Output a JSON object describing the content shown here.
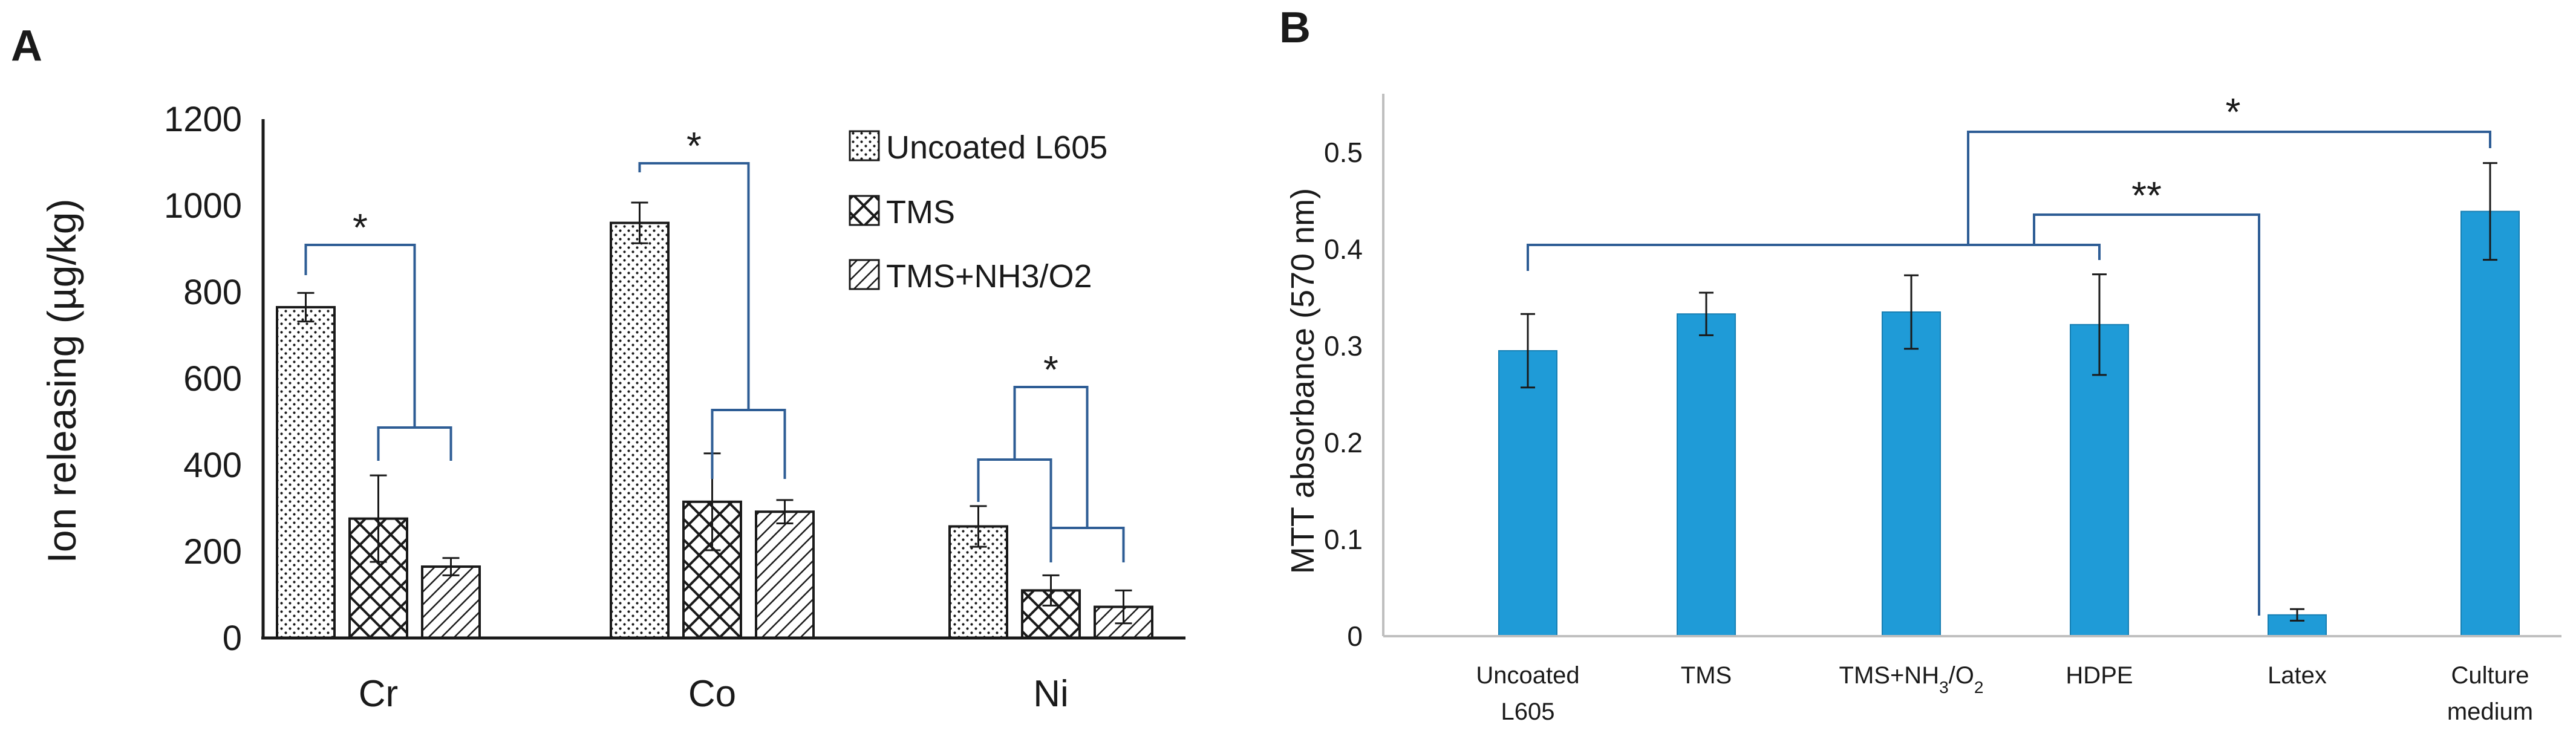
{
  "panels": {
    "a": "A",
    "b": "B"
  },
  "chart_data": [
    {
      "type": "bar",
      "title": "",
      "xlabel": "",
      "ylabel": "Ion releasing (µg/kg)",
      "ylim": [
        0,
        1200
      ],
      "yticks": [
        0,
        200,
        400,
        600,
        800,
        1000,
        1200
      ],
      "categories": [
        "Cr",
        "Co",
        "Ni"
      ],
      "series": [
        {
          "name": "Uncoated L605",
          "values": [
            765,
            960,
            258
          ],
          "errors": [
            33,
            47,
            47
          ],
          "pattern": "dots"
        },
        {
          "name": "TMS",
          "values": [
            276,
            315,
            110
          ],
          "errors": [
            100,
            112,
            35
          ],
          "pattern": "crosshatch"
        },
        {
          "name": "TMS+NH3/O2",
          "values": [
            165,
            292,
            72
          ],
          "errors": [
            20,
            27,
            38
          ],
          "pattern": "diagonal"
        }
      ],
      "legend_position": "top-right",
      "significance": [
        {
          "category": "Cr",
          "label": "*"
        },
        {
          "category": "Co",
          "label": "*"
        },
        {
          "category": "Ni",
          "label": "*"
        }
      ]
    },
    {
      "type": "bar",
      "title": "",
      "xlabel": "",
      "ylabel": "MTT absorbance (570 nm)",
      "ylim": [
        0,
        0.55
      ],
      "yticks": [
        0,
        0.1,
        0.2,
        0.3,
        0.4,
        0.5
      ],
      "ytick_labels": [
        "0",
        "0.1",
        "0.2",
        "0.3",
        "0.4",
        "0.5"
      ],
      "categories": [
        {
          "line1": "Uncoated",
          "line2": "L605"
        },
        {
          "line1": "TMS",
          "line2": ""
        },
        {
          "line1": "TMS+NH",
          "sub1": "3",
          "mid": "/O",
          "sub2": "2",
          "line2": ""
        },
        {
          "line1": "HDPE",
          "line2": ""
        },
        {
          "line1": "Latex",
          "line2": ""
        },
        {
          "line1": "Culture",
          "line2": "medium"
        }
      ],
      "values": [
        0.295,
        0.333,
        0.335,
        0.322,
        0.022,
        0.439
      ],
      "errors": [
        0.038,
        0.022,
        0.038,
        0.052,
        0.006,
        0.05
      ],
      "color": "#1F9BD7",
      "significance": [
        {
          "label": "*"
        },
        {
          "label": "**"
        }
      ]
    }
  ]
}
